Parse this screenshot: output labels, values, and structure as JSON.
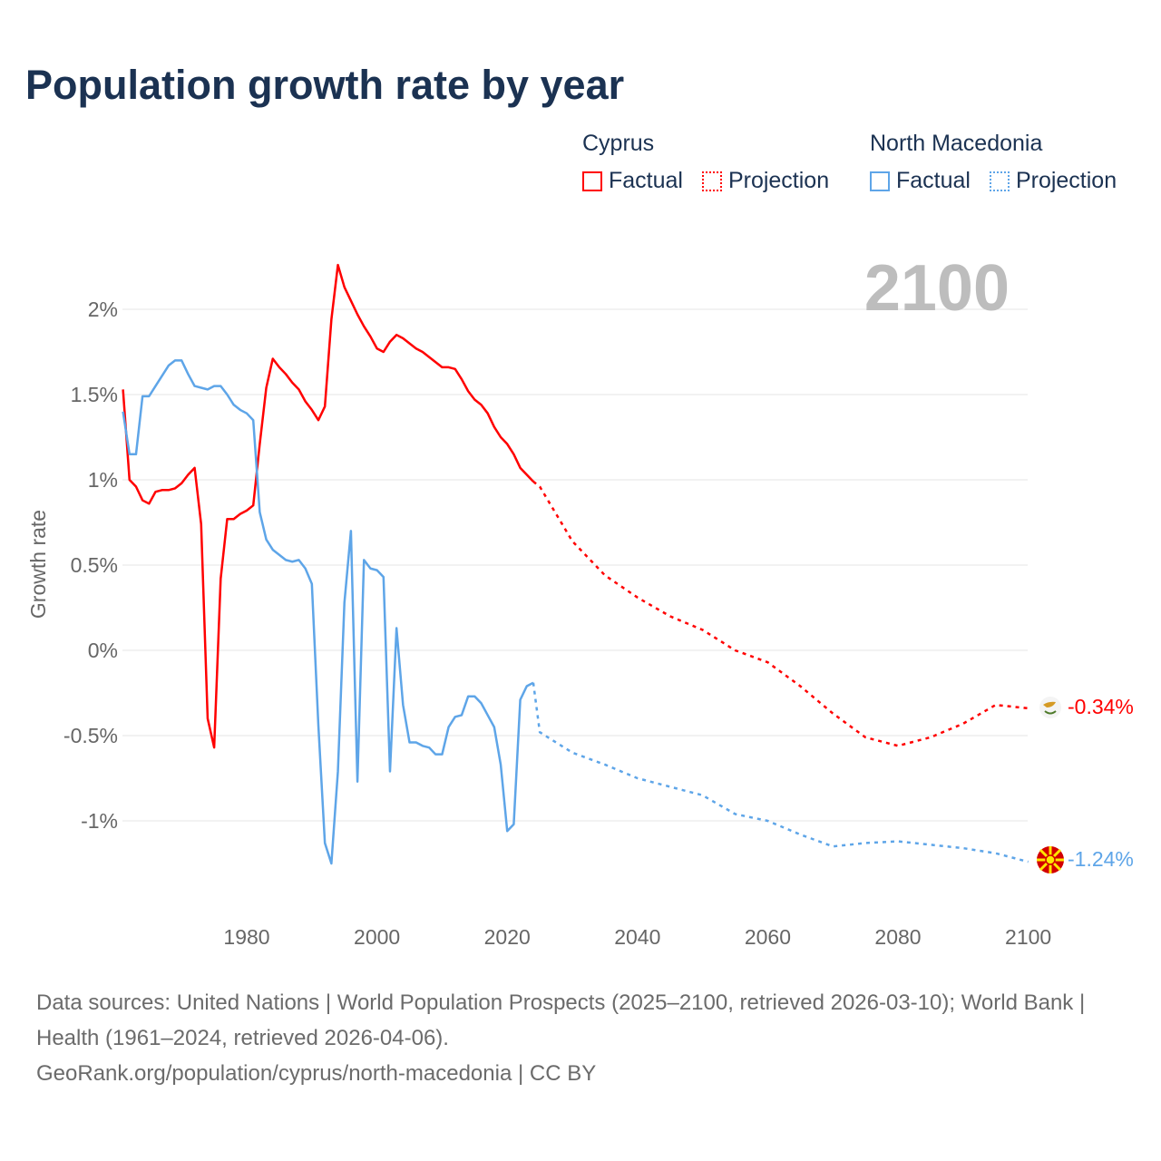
{
  "title": "Population growth rate by year",
  "legend": {
    "groups": [
      {
        "name": "Cyprus",
        "color": "#ff0000",
        "factual": "Factual",
        "projection": "Projection"
      },
      {
        "name": "North Macedonia",
        "color": "#5ea5e8",
        "factual": "Factual",
        "projection": "Projection"
      }
    ]
  },
  "year_label": "2100",
  "footer": {
    "sources": "Data sources: United Nations | World Population Prospects (2025–2100, retrieved 2026-03-10); World Bank | Health (1961–2024, retrieved 2026-04-06).",
    "link": "GeoRank.org/population/cyprus/north-macedonia | CC BY"
  },
  "chart_data": {
    "type": "line",
    "title": "Population growth rate by year",
    "xlabel": "",
    "ylabel": "Growth rate",
    "xlim": [
      1961,
      2100
    ],
    "ylim": [
      -1.5,
      2.4
    ],
    "x_ticks": [
      1980,
      2000,
      2020,
      2040,
      2060,
      2080,
      2100
    ],
    "x_tick_labels": [
      "1980",
      "2000",
      "2020",
      "2040",
      "2060",
      "2080",
      "2100"
    ],
    "y_ticks": [
      2,
      1.5,
      1,
      0.5,
      0,
      -0.5,
      -1
    ],
    "y_tick_labels": [
      "2%",
      "1.5%",
      "1%",
      "0.5%",
      "0%",
      "-0.5%",
      "-1%"
    ],
    "grid": true,
    "legend_position": "top-right",
    "series": [
      {
        "name": "Cyprus",
        "color": "#ff0000",
        "end_label": "-0.34%",
        "factual": {
          "x": [
            1961,
            1962,
            1963,
            1964,
            1965,
            1966,
            1967,
            1968,
            1969,
            1970,
            1971,
            1972,
            1973,
            1974,
            1975,
            1976,
            1977,
            1978,
            1979,
            1980,
            1981,
            1982,
            1983,
            1984,
            1985,
            1986,
            1987,
            1988,
            1989,
            1990,
            1991,
            1992,
            1993,
            1994,
            1995,
            1996,
            1997,
            1998,
            1999,
            2000,
            2001,
            2002,
            2003,
            2004,
            2005,
            2006,
            2007,
            2008,
            2009,
            2010,
            2011,
            2012,
            2013,
            2014,
            2015,
            2016,
            2017,
            2018,
            2019,
            2020,
            2021,
            2022,
            2023,
            2024
          ],
          "y": [
            1.53,
            1.0,
            0.96,
            0.88,
            0.86,
            0.93,
            0.94,
            0.94,
            0.95,
            0.98,
            1.03,
            1.07,
            0.74,
            -0.4,
            -0.57,
            0.42,
            0.77,
            0.77,
            0.8,
            0.82,
            0.85,
            1.21,
            1.54,
            1.71,
            1.66,
            1.62,
            1.57,
            1.53,
            1.46,
            1.41,
            1.35,
            1.43,
            1.94,
            2.26,
            2.13,
            2.05,
            1.97,
            1.9,
            1.84,
            1.77,
            1.75,
            1.81,
            1.85,
            1.83,
            1.8,
            1.77,
            1.75,
            1.72,
            1.69,
            1.66,
            1.66,
            1.65,
            1.59,
            1.52,
            1.47,
            1.44,
            1.39,
            1.31,
            1.25,
            1.21,
            1.15,
            1.07,
            1.03,
            0.99
          ]
        },
        "projection": {
          "x": [
            2024,
            2025,
            2030,
            2035,
            2040,
            2045,
            2050,
            2055,
            2060,
            2065,
            2070,
            2075,
            2080,
            2085,
            2090,
            2095,
            2100
          ],
          "y": [
            0.99,
            0.96,
            0.64,
            0.44,
            0.31,
            0.2,
            0.12,
            0.0,
            -0.07,
            -0.21,
            -0.37,
            -0.51,
            -0.56,
            -0.51,
            -0.43,
            -0.32,
            -0.34
          ]
        }
      },
      {
        "name": "North Macedonia",
        "color": "#5ea5e8",
        "end_label": "-1.24%",
        "factual": {
          "x": [
            1961,
            1962,
            1963,
            1964,
            1965,
            1966,
            1967,
            1968,
            1969,
            1970,
            1971,
            1972,
            1973,
            1974,
            1975,
            1976,
            1977,
            1978,
            1979,
            1980,
            1981,
            1982,
            1983,
            1984,
            1985,
            1986,
            1987,
            1988,
            1989,
            1990,
            1991,
            1992,
            1993,
            1994,
            1995,
            1996,
            1997,
            1998,
            1999,
            2000,
            2001,
            2002,
            2003,
            2004,
            2005,
            2006,
            2007,
            2008,
            2009,
            2010,
            2011,
            2012,
            2013,
            2014,
            2015,
            2016,
            2017,
            2018,
            2019,
            2020,
            2021,
            2022,
            2023,
            2024
          ],
          "y": [
            1.4,
            1.15,
            1.15,
            1.49,
            1.49,
            1.55,
            1.61,
            1.67,
            1.7,
            1.7,
            1.62,
            1.55,
            1.54,
            1.53,
            1.55,
            1.55,
            1.5,
            1.44,
            1.41,
            1.39,
            1.35,
            0.81,
            0.65,
            0.59,
            0.56,
            0.53,
            0.52,
            0.53,
            0.48,
            0.39,
            -0.44,
            -1.13,
            -1.25,
            -0.71,
            0.28,
            0.7,
            -0.77,
            0.53,
            0.48,
            0.47,
            0.43,
            -0.71,
            0.13,
            -0.32,
            -0.54,
            -0.54,
            -0.56,
            -0.57,
            -0.61,
            -0.61,
            -0.45,
            -0.39,
            -0.38,
            -0.27,
            -0.27,
            -0.31,
            -0.38,
            -0.45,
            -0.67,
            -1.06,
            -1.02,
            -0.29,
            -0.21,
            -0.19
          ]
        },
        "projection": {
          "x": [
            2024,
            2025,
            2030,
            2035,
            2040,
            2045,
            2050,
            2055,
            2060,
            2065,
            2070,
            2075,
            2080,
            2085,
            2090,
            2095,
            2100
          ],
          "y": [
            -0.19,
            -0.48,
            -0.6,
            -0.67,
            -0.75,
            -0.8,
            -0.85,
            -0.96,
            -1.0,
            -1.08,
            -1.15,
            -1.13,
            -1.12,
            -1.14,
            -1.16,
            -1.19,
            -1.24
          ]
        }
      }
    ]
  }
}
